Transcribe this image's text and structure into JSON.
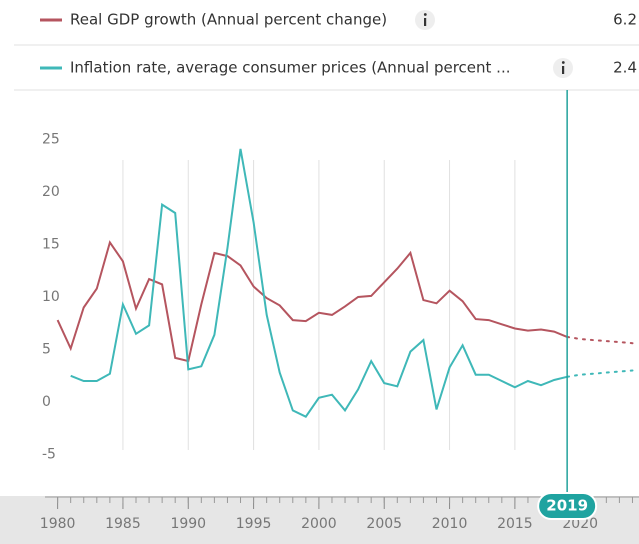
{
  "chart_data": {
    "type": "line",
    "x": [
      1980,
      1981,
      1982,
      1983,
      1984,
      1985,
      1986,
      1987,
      1988,
      1989,
      1990,
      1991,
      1992,
      1993,
      1994,
      1995,
      1996,
      1997,
      1998,
      1999,
      2000,
      2001,
      2002,
      2003,
      2004,
      2005,
      2006,
      2007,
      2008,
      2009,
      2010,
      2011,
      2012,
      2013,
      2014,
      2015,
      2016,
      2017,
      2018,
      2019,
      2020,
      2021,
      2022,
      2023,
      2024
    ],
    "series": [
      {
        "name": "Real GDP growth (Annual percent change)",
        "color": "#b5555f",
        "current_value": 6.2,
        "values": [
          7.8,
          5.1,
          9.0,
          10.8,
          15.2,
          13.4,
          8.9,
          11.7,
          11.2,
          4.2,
          3.9,
          9.3,
          14.2,
          13.9,
          13.0,
          11.0,
          9.9,
          9.2,
          7.8,
          7.7,
          8.5,
          8.3,
          9.1,
          10.0,
          10.1,
          11.4,
          12.7,
          14.2,
          9.7,
          9.4,
          10.6,
          9.6,
          7.9,
          7.8,
          7.4,
          7.0,
          6.8,
          6.9,
          6.7,
          6.2,
          6.0,
          5.9,
          5.8,
          5.7,
          5.6
        ]
      },
      {
        "name": "Inflation rate, average consumer prices (Annual percent ...",
        "color": "#3fb8b8",
        "current_value": 2.4,
        "values": [
          null,
          2.5,
          2.0,
          2.0,
          2.7,
          9.3,
          6.5,
          7.3,
          18.8,
          18.0,
          3.1,
          3.4,
          6.4,
          14.7,
          24.1,
          17.1,
          8.3,
          2.8,
          -0.8,
          -1.4,
          0.4,
          0.7,
          -0.8,
          1.2,
          3.9,
          1.8,
          1.5,
          4.8,
          5.9,
          -0.7,
          3.3,
          5.4,
          2.6,
          2.6,
          2.0,
          1.4,
          2.0,
          1.6,
          2.1,
          2.4,
          2.6,
          2.7,
          2.8,
          2.9,
          3.0
        ]
      }
    ],
    "highlight_x": 2019,
    "xlim": [
      1979.8,
      2024.5
    ],
    "xticks": [
      1980,
      1985,
      1990,
      1995,
      2000,
      2005,
      2010,
      2015,
      2020
    ],
    "xticks_minor": [
      1980,
      1981,
      1982,
      1983,
      1984,
      1985,
      1986,
      1987,
      1988,
      1989,
      1990,
      1991,
      1992,
      1993,
      1994,
      1995,
      1996,
      1997,
      1998,
      1999,
      2000,
      2001,
      2002,
      2003,
      2004,
      2005,
      2006,
      2007,
      2008,
      2009,
      2010,
      2011,
      2012,
      2013,
      2014,
      2015,
      2016,
      2017,
      2018,
      2019,
      2020,
      2021,
      2022,
      2023,
      2024
    ],
    "ylim": [
      -9,
      29
    ],
    "yticks": [
      -5,
      0,
      5,
      10,
      15,
      20,
      25
    ],
    "grid": true
  }
}
